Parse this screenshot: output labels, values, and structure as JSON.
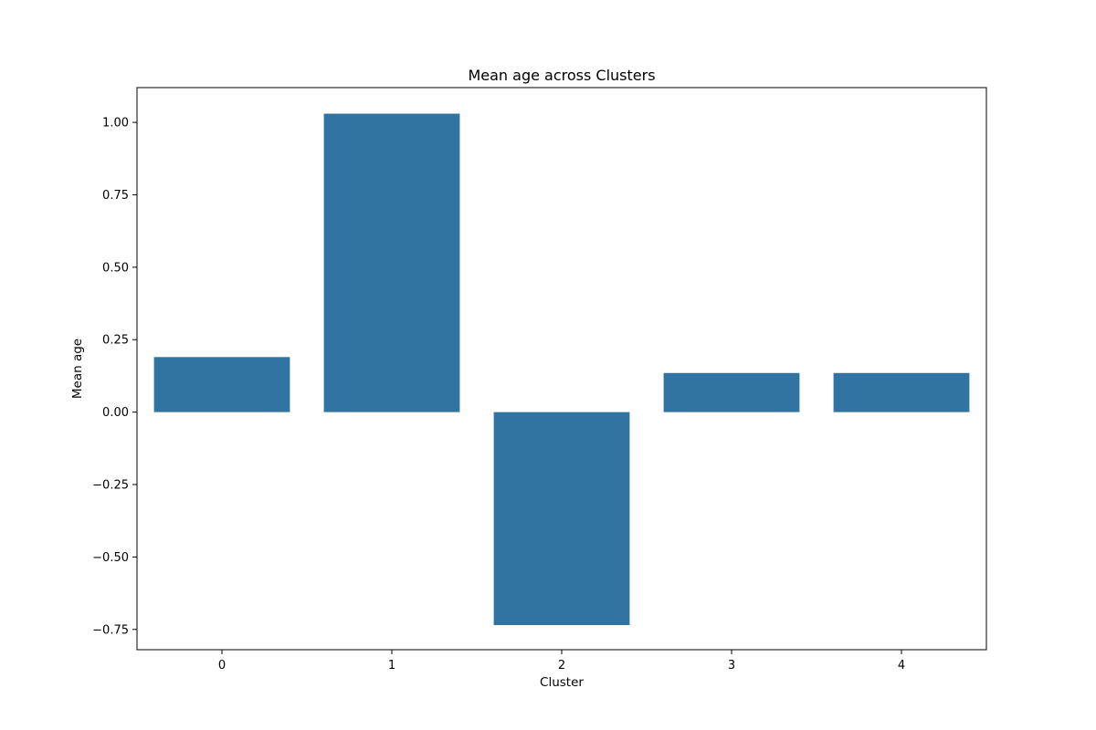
{
  "chart_data": {
    "type": "bar",
    "title": "Mean age across Clusters",
    "xlabel": "Cluster",
    "ylabel": "Mean age",
    "categories": [
      "0",
      "1",
      "2",
      "3",
      "4"
    ],
    "values": [
      0.19,
      1.03,
      -0.735,
      0.135,
      0.135
    ],
    "ylim": [
      -0.82,
      1.12
    ],
    "yticks": [
      -0.75,
      -0.5,
      -0.25,
      0.0,
      0.25,
      0.5,
      0.75,
      1.0
    ],
    "ytick_labels": [
      "−0.75",
      "−0.50",
      "−0.25",
      "0.00",
      "0.25",
      "0.50",
      "0.75",
      "1.00"
    ],
    "bar_color": "#3274a1",
    "grid": false,
    "legend": "none"
  }
}
